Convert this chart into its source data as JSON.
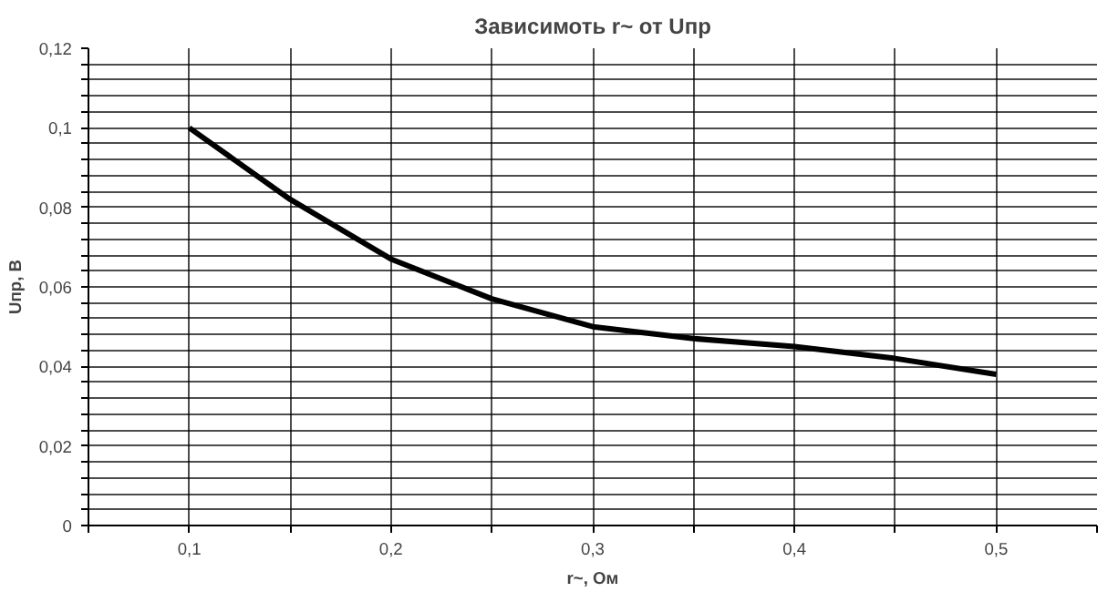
{
  "chart_data": {
    "type": "line",
    "title": "Зависимоть r~ от Uпр",
    "xlabel": "r~, Ом",
    "ylabel": "Uпр, В",
    "x": [
      0.1,
      0.15,
      0.2,
      0.25,
      0.3,
      0.35,
      0.4,
      0.45,
      0.5
    ],
    "series": [
      {
        "color": "#000000",
        "values": [
          0.1,
          0.082,
          0.067,
          0.057,
          0.05,
          0.047,
          0.045,
          0.042,
          0.038
        ]
      }
    ],
    "xlim": [
      0.05,
      0.55
    ],
    "xticks": [
      {
        "value": 0.05,
        "label": null
      },
      {
        "value": 0.1,
        "label": "0,1"
      },
      {
        "value": 0.15,
        "label": null
      },
      {
        "value": 0.2,
        "label": "0,2"
      },
      {
        "value": 0.25,
        "label": null
      },
      {
        "value": 0.3,
        "label": "0,3"
      },
      {
        "value": 0.35,
        "label": null
      },
      {
        "value": 0.4,
        "label": "0,4"
      },
      {
        "value": 0.45,
        "label": null
      },
      {
        "value": 0.5,
        "label": "0,5"
      },
      {
        "value": 0.55,
        "label": null
      }
    ],
    "ylim": [
      0,
      0.12
    ],
    "yticks": [
      0,
      {
        "value": 0.004,
        "label": null
      },
      {
        "value": 0.008,
        "label": null
      },
      {
        "value": 0.012,
        "label": null
      },
      {
        "value": 0.016,
        "label": null
      },
      {
        "value": 0.02,
        "label": "0,02"
      },
      {
        "value": 0.024,
        "label": null
      },
      {
        "value": 0.028,
        "label": null
      },
      {
        "value": 0.032,
        "label": null
      },
      {
        "value": 0.036,
        "label": null
      },
      {
        "value": 0.04,
        "label": "0,04"
      },
      {
        "value": 0.044,
        "label": null
      },
      {
        "value": 0.048,
        "label": null
      },
      {
        "value": 0.052,
        "label": null
      },
      {
        "value": 0.056,
        "label": null
      },
      {
        "value": 0.06,
        "label": "0,06"
      },
      {
        "value": 0.064,
        "label": null
      },
      {
        "value": 0.068,
        "label": null
      },
      {
        "value": 0.072,
        "label": null
      },
      {
        "value": 0.076,
        "label": null
      },
      {
        "value": 0.08,
        "label": "0,08"
      },
      {
        "value": 0.084,
        "label": null
      },
      {
        "value": 0.088,
        "label": null
      },
      {
        "value": 0.092,
        "label": null
      },
      {
        "value": 0.096,
        "label": null
      },
      {
        "value": 0.1,
        "label": "0,1"
      },
      {
        "value": 0.104,
        "label": null
      },
      {
        "value": 0.108,
        "label": null
      },
      {
        "value": 0.112,
        "label": null
      },
      {
        "value": 0.116,
        "label": null
      },
      {
        "value": 0.12,
        "label": "0,12"
      }
    ],
    "grid": true,
    "line_style": "solid"
  }
}
